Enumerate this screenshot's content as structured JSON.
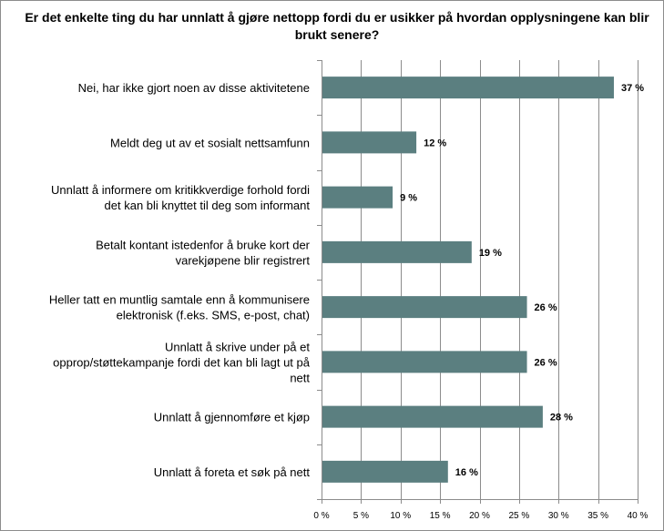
{
  "chart_data": {
    "type": "bar",
    "orientation": "horizontal",
    "title": "Er det enkelte ting du har unnlatt å gjøre nettopp fordi du er usikker på hvordan opplysningene kan blir brukt senere?",
    "categories": [
      [
        "Nei, har ikke gjort noen av disse aktivitetene"
      ],
      [
        "Meldt deg ut av et sosialt nettsamfunn"
      ],
      [
        "Unnlatt å informere om kritikkverdige forhold fordi",
        "det kan bli knyttet til deg som informant"
      ],
      [
        "Betalt kontant istedenfor å bruke kort der",
        "varekjøpene blir registrert"
      ],
      [
        "Heller tatt en muntlig samtale enn å kommunisere",
        "elektronisk (f.eks. SMS, e-post,  chat)"
      ],
      [
        "Unnlatt å skrive under på et",
        "opprop/støttekampanje fordi det kan bli lagt ut på",
        "nett"
      ],
      [
        "Unnlatt å gjennomføre et kjøp"
      ],
      [
        "Unnlatt å foreta et søk på nett"
      ]
    ],
    "values": [
      37,
      12,
      9,
      19,
      26,
      26,
      28,
      16
    ],
    "value_labels": [
      "37 %",
      "12 %",
      "9 %",
      "19 %",
      "26 %",
      "26 %",
      "28 %",
      "16 %"
    ],
    "xlim": [
      0,
      40
    ],
    "x_ticks": [
      0,
      5,
      10,
      15,
      20,
      25,
      30,
      35,
      40
    ],
    "x_tick_labels": [
      "0 %",
      "5 %",
      "10 %",
      "15 %",
      "20 %",
      "25 %",
      "30 %",
      "35 %",
      "40 %"
    ],
    "grid": "vertical",
    "legend": "none",
    "bar_color": "#5b7f80",
    "grid_color": "#8c8c8c"
  }
}
